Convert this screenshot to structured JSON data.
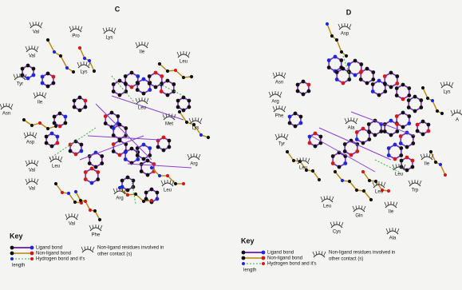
{
  "panels": [
    {
      "label": "C",
      "residues": [
        "Val",
        "Pro",
        "Lys",
        "Ile",
        "Leu",
        "Val",
        "Lys",
        "Tyr",
        "Ile",
        "Asn",
        "Leu",
        "Met",
        "Lys",
        "Asp",
        "Val",
        "Leu",
        "Val",
        "Arg",
        "Leu",
        "Arg",
        "Val",
        "Phe"
      ],
      "key": {
        "title": "Key",
        "ligand": "Ligand bond",
        "non_ligand": "Non-ligand bond",
        "hbond": [
          "Hydrogen bond and it's",
          "length"
        ],
        "contact": [
          "Non-ligand residues involved in",
          "other contact (s)"
        ]
      }
    },
    {
      "label": "D",
      "residues": [
        "Asp",
        "Asn",
        "Arg",
        "Phe",
        "Ala",
        "Lys",
        "Tyr",
        "Leu",
        "Ile",
        "Leu",
        "Trp",
        "Leu",
        "Gln",
        "Ile",
        "Leu",
        "Cys",
        "Ala",
        "A"
      ],
      "key": {
        "title": "Key",
        "ligand": "Ligand bond",
        "non_ligand": "Non-ligand bond",
        "hbond": [
          "Hydrogen bond and it's",
          "length"
        ],
        "contact": [
          "Non-ligand residues involved in",
          "other contact (s)"
        ]
      }
    }
  ]
}
